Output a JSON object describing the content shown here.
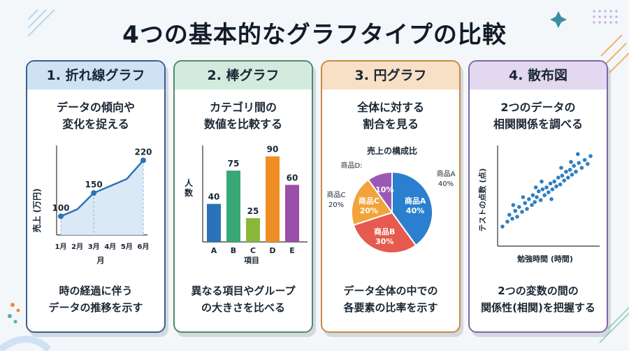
{
  "title": "4つの基本的なグラフタイプの比較",
  "cards": [
    {
      "heading": "1. 折れ線グラフ",
      "sub": [
        "データの傾向や",
        "変化を捉える"
      ],
      "foot": [
        "時の経過に伴う",
        "データの推移を示す"
      ],
      "color": "#2b73b9"
    },
    {
      "heading": "2. 棒グラフ",
      "sub": [
        "カテゴリ間の",
        "数値を比較する"
      ],
      "foot": [
        "異なる項目やグループ",
        "の大きさを比べる"
      ],
      "color": "#3aa876"
    },
    {
      "heading": "3. 円グラフ",
      "sub": [
        "全体に対する",
        "割合を見る"
      ],
      "foot": [
        "データ全体の中での",
        "各要素の比率を示す"
      ],
      "color": "#e08a2b"
    },
    {
      "heading": "4. 散布図",
      "sub": [
        "2つのデータの",
        "相関関係を調べる"
      ],
      "foot": [
        "2つの変数の間の",
        "関係性(相関)を把握する"
      ],
      "color": "#7a5aa6"
    }
  ],
  "chart_data": [
    {
      "type": "line",
      "title": "",
      "xlabel": "月",
      "ylabel": "売上 (万円)",
      "categories": [
        "1月",
        "2月",
        "3月",
        "4月",
        "5月",
        "6月"
      ],
      "values": [
        100,
        115,
        150,
        165,
        180,
        220
      ],
      "data_labels": [
        {
          "index": 0,
          "text": "100"
        },
        {
          "index": 2,
          "text": "150"
        },
        {
          "index": 5,
          "text": "220"
        }
      ],
      "ylim": [
        60,
        240
      ]
    },
    {
      "type": "bar",
      "title": "",
      "xlabel": "項目",
      "ylabel": "人数",
      "categories": [
        "A",
        "B",
        "C",
        "D",
        "E"
      ],
      "values": [
        40,
        75,
        25,
        90,
        60
      ],
      "colors": [
        "#2b73b9",
        "#3aa876",
        "#8ab83a",
        "#ef8e25",
        "#9a4fa8"
      ],
      "ylim": [
        0,
        100
      ]
    },
    {
      "type": "pie",
      "title": "売上の構成比",
      "slices": [
        {
          "label": "商品A",
          "value": 40,
          "color": "#2b7fcf"
        },
        {
          "label": "商品B",
          "value": 30,
          "color": "#e65a4f"
        },
        {
          "label": "商品C",
          "value": 20,
          "color": "#f2a33a"
        },
        {
          "label": "商品D",
          "value": 10,
          "color": "#9b59b6"
        }
      ],
      "outer_labels": [
        {
          "name": "商品A",
          "pct": "40%"
        },
        {
          "name": "商品C",
          "pct": "20%"
        },
        {
          "name": "商品D:",
          "pct": ""
        }
      ]
    },
    {
      "type": "scatter",
      "title": "",
      "xlabel": "勉強時間 (時間)",
      "ylabel": "テストの点数 (点)",
      "xlim": [
        0,
        10
      ],
      "ylim": [
        0,
        100
      ],
      "points": [
        [
          0.5,
          20
        ],
        [
          1.0,
          25
        ],
        [
          1.2,
          32
        ],
        [
          1.5,
          28
        ],
        [
          1.8,
          36
        ],
        [
          2.0,
          30
        ],
        [
          2.2,
          40
        ],
        [
          2.5,
          35
        ],
        [
          2.8,
          44
        ],
        [
          3.0,
          38
        ],
        [
          3.2,
          48
        ],
        [
          3.5,
          42
        ],
        [
          3.6,
          52
        ],
        [
          3.8,
          45
        ],
        [
          4.0,
          50
        ],
        [
          4.2,
          56
        ],
        [
          4.4,
          47
        ],
        [
          4.6,
          58
        ],
        [
          4.8,
          52
        ],
        [
          5.0,
          60
        ],
        [
          5.2,
          55
        ],
        [
          5.4,
          64
        ],
        [
          5.6,
          58
        ],
        [
          5.8,
          66
        ],
        [
          6.0,
          61
        ],
        [
          6.2,
          70
        ],
        [
          6.4,
          63
        ],
        [
          6.6,
          72
        ],
        [
          6.8,
          67
        ],
        [
          7.0,
          76
        ],
        [
          7.2,
          70
        ],
        [
          7.4,
          78
        ],
        [
          7.6,
          73
        ],
        [
          7.8,
          82
        ],
        [
          8.0,
          76
        ],
        [
          8.3,
          85
        ],
        [
          8.6,
          80
        ],
        [
          8.9,
          88
        ],
        [
          9.2,
          84
        ],
        [
          9.5,
          92
        ],
        [
          2.6,
          50
        ],
        [
          5.5,
          48
        ],
        [
          3.9,
          60
        ],
        [
          6.5,
          80
        ],
        [
          7.5,
          86
        ],
        [
          1.6,
          42
        ],
        [
          4.5,
          66
        ],
        [
          8.2,
          94
        ]
      ]
    }
  ]
}
